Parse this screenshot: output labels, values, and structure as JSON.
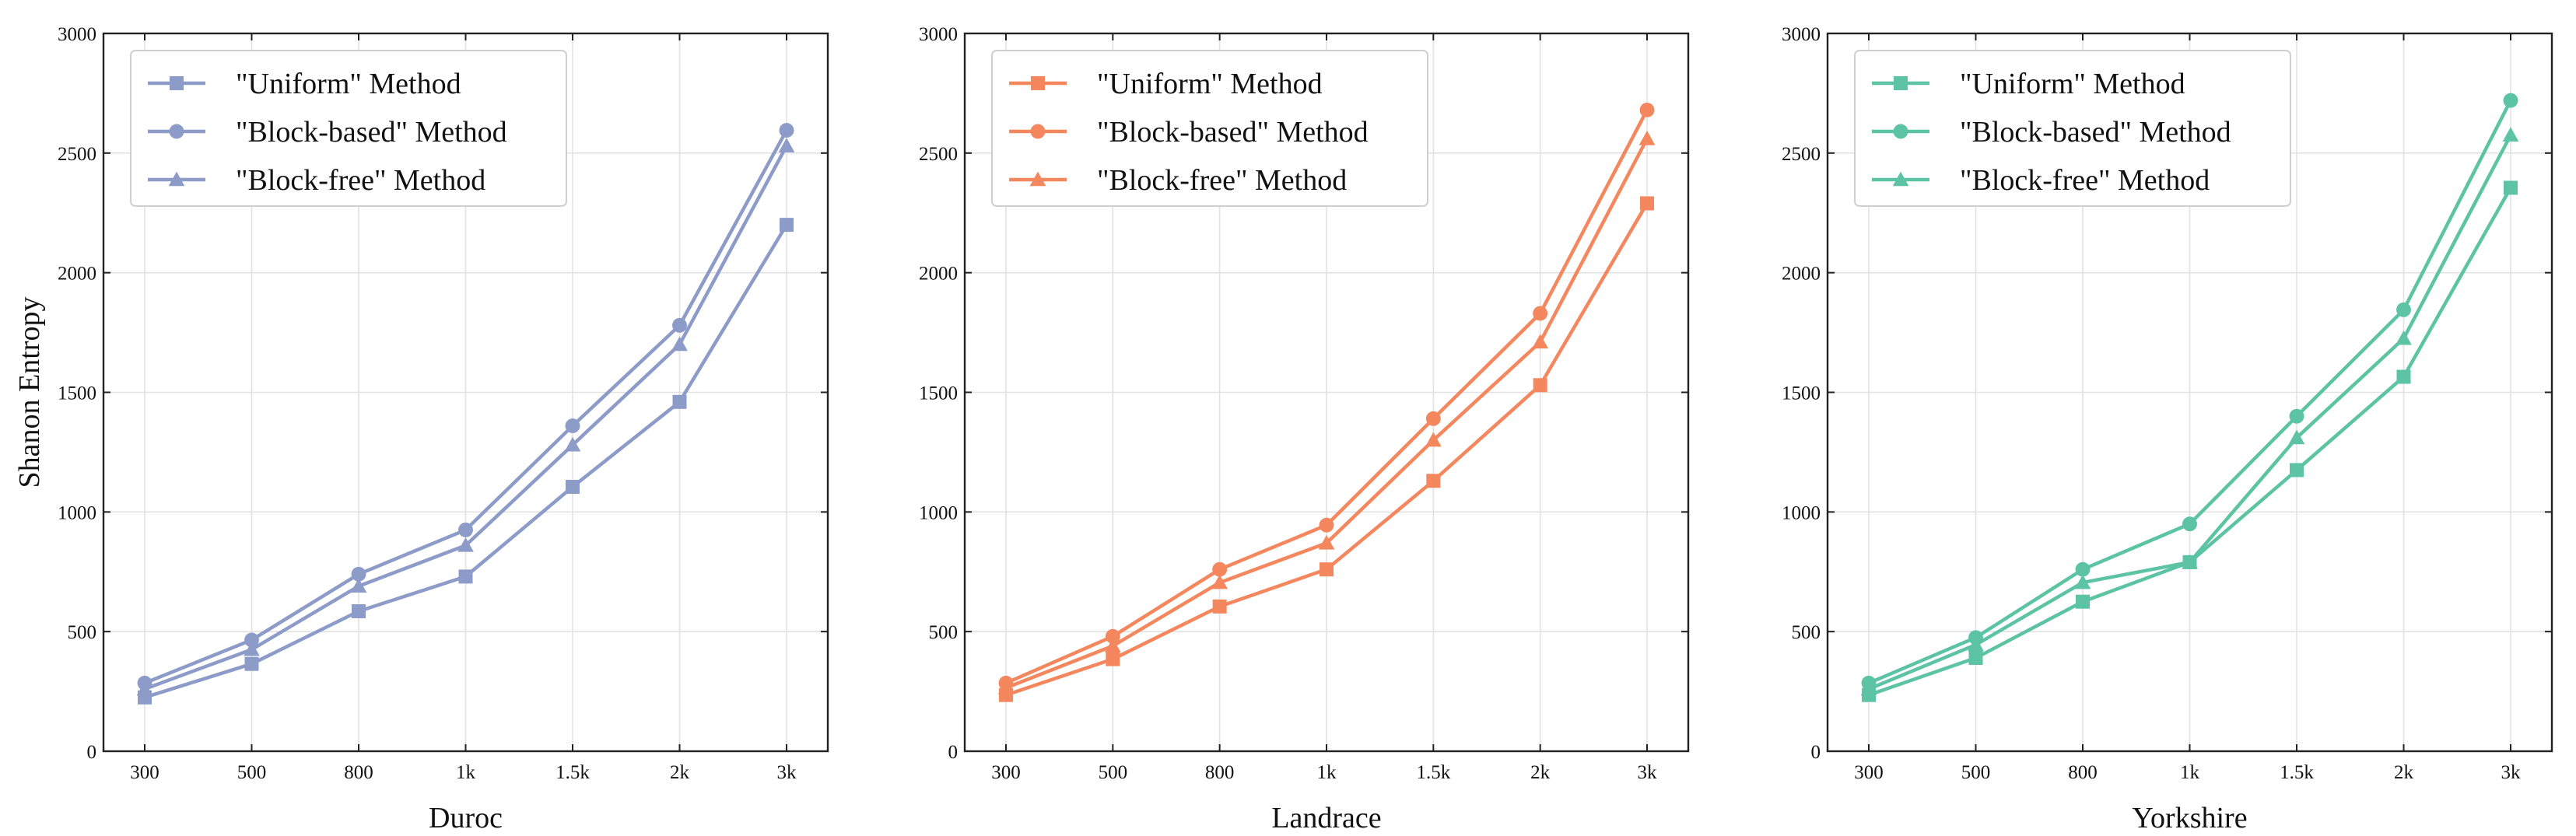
{
  "chart_data": [
    {
      "type": "line",
      "xlabel": "Duroc",
      "ylabel": "Shanon Entropy",
      "categories": [
        "300",
        "500",
        "800",
        "1k",
        "1.5k",
        "2k",
        "3k"
      ],
      "ylim": [
        0,
        3000
      ],
      "yticks": [
        0,
        500,
        1000,
        1500,
        2000,
        2500,
        3000
      ],
      "grid": true,
      "legend_position": "top-left",
      "color": "#8c9bc8",
      "series": [
        {
          "name": "\"Uniform\" Method",
          "marker": "square",
          "values": [
            225,
            365,
            585,
            730,
            1105,
            1460,
            2200
          ]
        },
        {
          "name": "\"Block-based\" Method",
          "marker": "circle",
          "values": [
            285,
            465,
            740,
            925,
            1360,
            1780,
            2595
          ]
        },
        {
          "name": "\"Block-free\" Method",
          "marker": "triangle",
          "values": [
            260,
            425,
            690,
            860,
            1280,
            1700,
            2530
          ]
        }
      ]
    },
    {
      "type": "line",
      "xlabel": "Landrace",
      "ylabel": "",
      "categories": [
        "300",
        "500",
        "800",
        "1k",
        "1.5k",
        "2k",
        "3k"
      ],
      "ylim": [
        0,
        3000
      ],
      "yticks": [
        0,
        500,
        1000,
        1500,
        2000,
        2500,
        3000
      ],
      "grid": true,
      "legend_position": "top-left",
      "color": "#f4875e",
      "series": [
        {
          "name": "\"Uniform\" Method",
          "marker": "square",
          "values": [
            235,
            385,
            605,
            760,
            1130,
            1530,
            2290
          ]
        },
        {
          "name": "\"Block-based\" Method",
          "marker": "circle",
          "values": [
            285,
            480,
            760,
            945,
            1390,
            1830,
            2680
          ]
        },
        {
          "name": "\"Block-free\" Method",
          "marker": "triangle",
          "values": [
            265,
            440,
            705,
            870,
            1300,
            1710,
            2560
          ]
        }
      ]
    },
    {
      "type": "line",
      "xlabel": "Yorkshire",
      "ylabel": "",
      "categories": [
        "300",
        "500",
        "800",
        "1k",
        "1.5k",
        "2k",
        "3k"
      ],
      "ylim": [
        0,
        3000
      ],
      "yticks": [
        0,
        500,
        1000,
        1500,
        2000,
        2500,
        3000
      ],
      "grid": true,
      "legend_position": "top-left",
      "color": "#5cc4a2",
      "series": [
        {
          "name": "\"Uniform\" Method",
          "marker": "square",
          "values": [
            235,
            390,
            625,
            790,
            1175,
            1565,
            2355
          ]
        },
        {
          "name": "\"Block-based\" Method",
          "marker": "circle",
          "values": [
            285,
            475,
            760,
            950,
            1400,
            1845,
            2720
          ]
        },
        {
          "name": "\"Block-free\" Method",
          "marker": "triangle",
          "values": [
            260,
            445,
            705,
            790,
            1310,
            1725,
            2575
          ]
        }
      ]
    }
  ]
}
